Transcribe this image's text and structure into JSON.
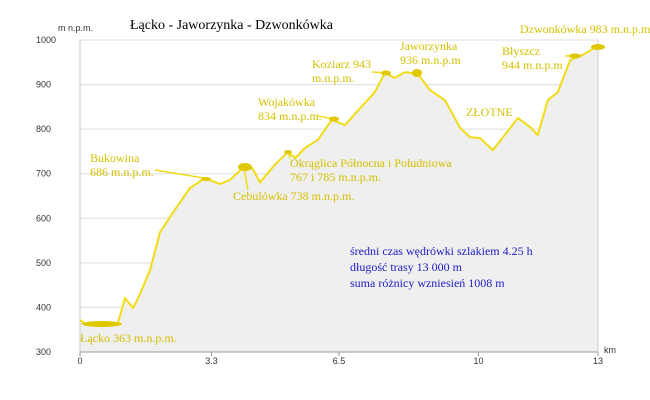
{
  "chart_data": {
    "type": "line",
    "title": "Łącko - Jaworzynka - Dzwonkówka",
    "y_label": "m n.p.m.",
    "x_label": "km",
    "x": [
      0,
      0.13,
      0.95,
      1.13,
      1.33,
      1.46,
      1.76,
      2.01,
      2.38,
      2.76,
      3.14,
      3.51,
      3.76,
      4.14,
      4.32,
      4.52,
      4.89,
      5.22,
      5.4,
      5.65,
      5.97,
      6.32,
      6.65,
      7.03,
      7.4,
      7.65,
      7.9,
      8.16,
      8.48,
      8.78,
      9.16,
      9.54,
      9.79,
      10.04,
      10.36,
      10.66,
      10.99,
      11.29,
      11.49,
      11.74,
      11.99,
      12.3,
      12.6,
      13
    ],
    "y": [
      372,
      363,
      365,
      421,
      399,
      421,
      484,
      569,
      619,
      668,
      690,
      677,
      686,
      717,
      713,
      681,
      720,
      749,
      735,
      758,
      776,
      821,
      809,
      847,
      883,
      926,
      915,
      928,
      924,
      888,
      865,
      803,
      782,
      780,
      753,
      787,
      825,
      805,
      787,
      865,
      883,
      955,
      966,
      987
    ],
    "color": "#f0dc14",
    "fill": "#efefef",
    "xlim": [
      0,
      13
    ],
    "xticks": [
      0,
      3.3,
      6.5,
      10,
      13
    ],
    "ylim": [
      300,
      1000
    ],
    "yticks": [
      300,
      400,
      500,
      600,
      700,
      800,
      900,
      1000
    ],
    "grid": true,
    "annotations": [
      [
        "Dzwonkówka 983 m.n.p.m"
      ],
      [
        "Błyszcz",
        "944 m.n.p.m"
      ],
      [
        "Jaworzynka",
        "936 m.n.p.m"
      ],
      [
        "Koziarz 943",
        "m.n.p.m."
      ],
      [
        "Wojakówka",
        "834 m.n.p.m."
      ],
      [
        "ZŁOTNE"
      ],
      [
        "Bukowina",
        "686 m.n.p.m."
      ],
      [
        "Okrąglica Północna i Południowa",
        "767 i 785 m.n.p.m."
      ],
      [
        "Cebulówka 738 m.n.p.m."
      ],
      [
        "Łącko 363 m.n.p.m."
      ]
    ],
    "info": [
      "średni czas wędrówki szlakiem 4.25 h",
      "długość trasy 13 000 m",
      "suma różnicy wzniesień 1008 m"
    ],
    "info_color": "#2020c8"
  }
}
